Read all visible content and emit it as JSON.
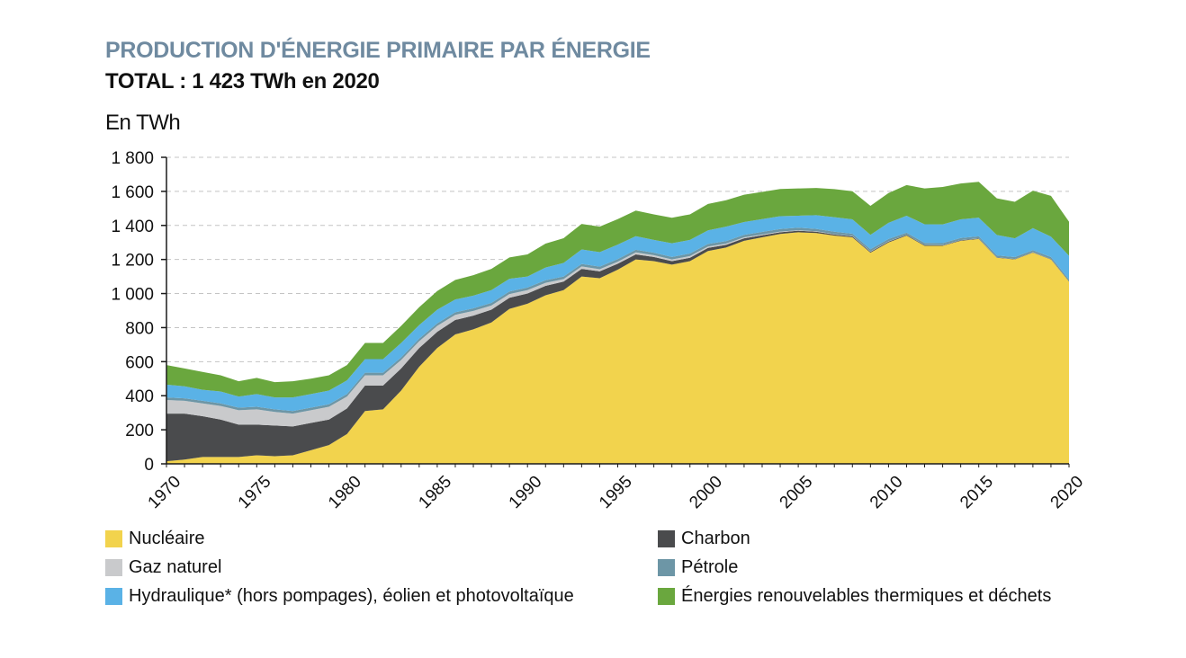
{
  "title": "PRODUCTION D'ÉNERGIE PRIMAIRE PAR ÉNERGIE",
  "subtitle": "TOTAL : 1 423 TWh en 2020",
  "colors": {
    "nucleaire": "#f2d34d",
    "charbon": "#4a4b4d",
    "gaz": "#c9cacc",
    "petrole": "#6d96a6",
    "hydraulique": "#5ab2e6",
    "enr_thermiques": "#6aa73e"
  },
  "chart_data": {
    "type": "area",
    "stacked": true,
    "ylabel": "En TWh",
    "ylim": [
      0,
      1800
    ],
    "yticks": [
      0,
      200,
      400,
      600,
      800,
      1000,
      1200,
      1400,
      1600,
      1800
    ],
    "ytick_labels": [
      "0",
      "200",
      "400",
      "600",
      "800",
      "1 000",
      "1 200",
      "1 400",
      "1 600",
      "1 800"
    ],
    "xlim": [
      1970,
      2020
    ],
    "xticks": [
      1970,
      1975,
      1980,
      1985,
      1990,
      1995,
      2000,
      2005,
      2010,
      2015,
      2020
    ],
    "xtick_labels": [
      "1970",
      "1975",
      "1980",
      "1985",
      "1990",
      "1995",
      "2000",
      "2005",
      "2010",
      "2015",
      "2020"
    ],
    "grid": "horizontal-dashed",
    "x": [
      1970,
      1971,
      1972,
      1973,
      1974,
      1975,
      1976,
      1977,
      1978,
      1979,
      1980,
      1981,
      1982,
      1983,
      1984,
      1985,
      1986,
      1987,
      1988,
      1989,
      1990,
      1991,
      1992,
      1993,
      1994,
      1995,
      1996,
      1997,
      1998,
      1999,
      2000,
      2001,
      2002,
      2003,
      2004,
      2005,
      2006,
      2007,
      2008,
      2009,
      2010,
      2011,
      2012,
      2013,
      2014,
      2015,
      2016,
      2017,
      2018,
      2019,
      2020
    ],
    "series": [
      {
        "key": "nucleaire",
        "name": "Nucléaire",
        "values": [
          15,
          25,
          40,
          40,
          40,
          50,
          45,
          50,
          80,
          110,
          175,
          310,
          320,
          430,
          570,
          680,
          760,
          790,
          830,
          910,
          940,
          990,
          1020,
          1100,
          1090,
          1140,
          1200,
          1190,
          1170,
          1190,
          1250,
          1270,
          1310,
          1330,
          1350,
          1360,
          1355,
          1340,
          1330,
          1240,
          1300,
          1340,
          1280,
          1280,
          1310,
          1320,
          1210,
          1200,
          1240,
          1200,
          1070
        ]
      },
      {
        "key": "charbon",
        "name": "Charbon",
        "values": [
          280,
          270,
          240,
          220,
          190,
          180,
          180,
          170,
          160,
          150,
          150,
          150,
          140,
          130,
          110,
          95,
          85,
          80,
          75,
          65,
          60,
          55,
          50,
          45,
          40,
          35,
          30,
          25,
          20,
          20,
          18,
          16,
          14,
          12,
          10,
          9,
          8,
          7,
          6,
          5,
          5,
          4,
          4,
          3,
          3,
          3,
          2,
          2,
          2,
          2,
          2
        ]
      },
      {
        "key": "gaz",
        "name": "Gaz naturel",
        "values": [
          80,
          75,
          75,
          80,
          85,
          90,
          80,
          75,
          75,
          75,
          70,
          60,
          60,
          50,
          40,
          35,
          30,
          28,
          25,
          22,
          20,
          18,
          15,
          14,
          13,
          12,
          12,
          10,
          10,
          10,
          8,
          7,
          6,
          5,
          4,
          3,
          3,
          2,
          2,
          2,
          2,
          1,
          1,
          1,
          1,
          1,
          1,
          1,
          1,
          1,
          0
        ]
      },
      {
        "key": "petrole",
        "name": "Pétrole",
        "values": [
          15,
          15,
          15,
          15,
          15,
          15,
          15,
          15,
          15,
          15,
          15,
          15,
          15,
          15,
          15,
          15,
          15,
          15,
          15,
          15,
          15,
          15,
          15,
          15,
          15,
          15,
          15,
          15,
          15,
          15,
          15,
          15,
          15,
          15,
          15,
          15,
          14,
          14,
          13,
          13,
          13,
          12,
          12,
          12,
          12,
          12,
          11,
          11,
          11,
          11,
          10
        ]
      },
      {
        "key": "hydraulique",
        "name": "Hydraulique* (hors pompages), éolien et photovoltaïque",
        "values": [
          75,
          70,
          65,
          70,
          65,
          75,
          70,
          80,
          80,
          80,
          80,
          80,
          80,
          85,
          80,
          80,
          75,
          75,
          75,
          75,
          65,
          75,
          80,
          85,
          85,
          85,
          80,
          75,
          80,
          80,
          80,
          85,
          75,
          75,
          75,
          70,
          80,
          85,
          85,
          85,
          95,
          100,
          110,
          110,
          110,
          110,
          120,
          110,
          130,
          120,
          140
        ]
      },
      {
        "key": "enr_thermiques",
        "name": "Énergies renouvelables thermiques et déchets",
        "values": [
          115,
          105,
          105,
          95,
          90,
          95,
          90,
          95,
          90,
          90,
          90,
          95,
          95,
          100,
          105,
          110,
          115,
          120,
          125,
          125,
          130,
          140,
          145,
          150,
          150,
          150,
          150,
          150,
          150,
          150,
          155,
          155,
          160,
          160,
          160,
          160,
          160,
          165,
          165,
          170,
          175,
          180,
          210,
          220,
          210,
          210,
          215,
          215,
          220,
          240,
          200
        ]
      }
    ]
  },
  "legend": [
    {
      "key": "nucleaire",
      "label": "Nucléaire"
    },
    {
      "key": "charbon",
      "label": "Charbon"
    },
    {
      "key": "gaz",
      "label": "Gaz naturel"
    },
    {
      "key": "petrole",
      "label": "Pétrole"
    },
    {
      "key": "hydraulique",
      "label": "Hydraulique* (hors pompages), éolien et photovoltaïque"
    },
    {
      "key": "enr_thermiques",
      "label": "Énergies renouvelables thermiques et déchets"
    }
  ]
}
